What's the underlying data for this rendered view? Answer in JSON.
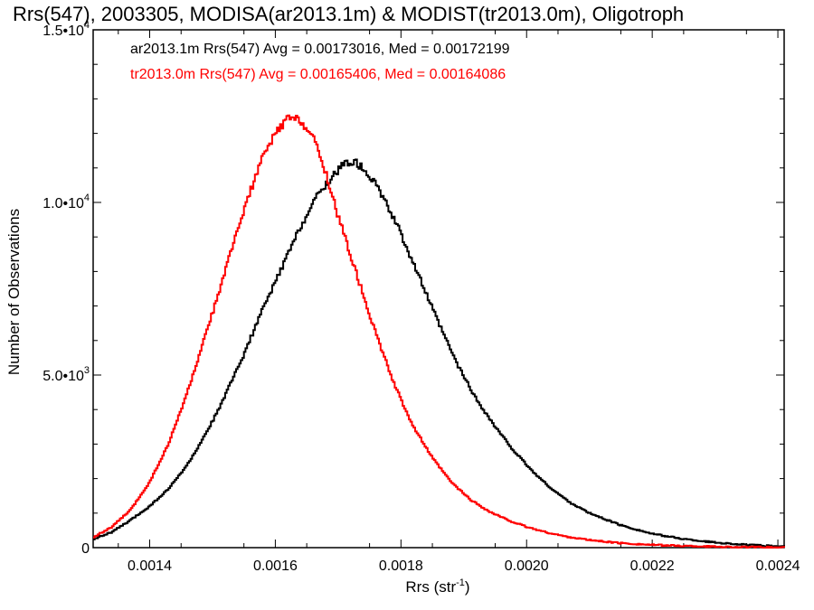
{
  "chart_data": {
    "type": "line",
    "title": "Rrs(547), 2003305, MODISA(ar2013.1m) & MODIST(tr2013.0m), Oligotroph",
    "xlabel": "Rrs (str",
    "xlabel_sup": "-1",
    "xlabel_close": ")",
    "ylabel": "Number of Observations",
    "xlim": [
      0.00131,
      0.00241
    ],
    "ylim": [
      0,
      15000
    ],
    "x_ticks": [
      0.0014,
      0.0016,
      0.0018,
      0.002,
      0.0022,
      0.0024
    ],
    "x_tick_labels": [
      "0.0014",
      "0.0016",
      "0.0018",
      "0.0020",
      "0.0022",
      "0.0024"
    ],
    "y_ticks": [
      0,
      5000,
      10000,
      15000
    ],
    "y_tick_labels": [
      {
        "base": "0",
        "exp": ""
      },
      {
        "base": "5.0•10",
        "exp": "3"
      },
      {
        "base": "1.0•10",
        "exp": "4"
      },
      {
        "base": "1.5•10",
        "exp": "4"
      }
    ],
    "grid": false,
    "series": [
      {
        "name": "ar2013.1m",
        "color": "#000000",
        "stats": "ar2013.1m Rrs(547) Avg = 0.00173016, Med = 0.00172199",
        "x": [
          0.00131,
          0.00134,
          0.00137,
          0.0014,
          0.00143,
          0.00146,
          0.00149,
          0.00152,
          0.00155,
          0.00158,
          0.00161,
          0.00164,
          0.00167,
          0.0017,
          0.00171,
          0.00172,
          0.00173,
          0.00175,
          0.00177,
          0.0018,
          0.00183,
          0.00186,
          0.00189,
          0.00192,
          0.00195,
          0.00198,
          0.00201,
          0.00204,
          0.00207,
          0.0021,
          0.00215,
          0.0022,
          0.00225,
          0.0023,
          0.00235,
          0.00241
        ],
        "y": [
          250,
          450,
          800,
          1200,
          1700,
          2400,
          3300,
          4400,
          5600,
          6900,
          8100,
          9300,
          10300,
          10950,
          11100,
          11200,
          11150,
          10800,
          10200,
          9100,
          7800,
          6500,
          5300,
          4300,
          3500,
          2800,
          2200,
          1700,
          1300,
          1000,
          650,
          400,
          250,
          150,
          80,
          30
        ]
      },
      {
        "name": "tr2013.0m",
        "color": "#ff0000",
        "stats": "tr2013.0m Rrs(547) Avg = 0.00165406, Med = 0.00164086",
        "x": [
          0.00131,
          0.00134,
          0.00137,
          0.0014,
          0.00143,
          0.00146,
          0.00149,
          0.00152,
          0.00155,
          0.00158,
          0.0016,
          0.00162,
          0.00164,
          0.00166,
          0.00168,
          0.0017,
          0.00173,
          0.00176,
          0.00179,
          0.00182,
          0.00185,
          0.00188,
          0.00191,
          0.00194,
          0.00197,
          0.002,
          0.00203,
          0.00206,
          0.0021,
          0.00215,
          0.0022,
          0.00225,
          0.0023,
          0.00235,
          0.00241
        ],
        "y": [
          300,
          600,
          1100,
          1900,
          3000,
          4500,
          6200,
          8000,
          9800,
          11300,
          12000,
          12450,
          12400,
          11900,
          10900,
          9600,
          7900,
          6200,
          4700,
          3500,
          2600,
          1900,
          1400,
          1050,
          800,
          600,
          450,
          330,
          220,
          130,
          80,
          50,
          30,
          15,
          5
        ]
      }
    ]
  }
}
